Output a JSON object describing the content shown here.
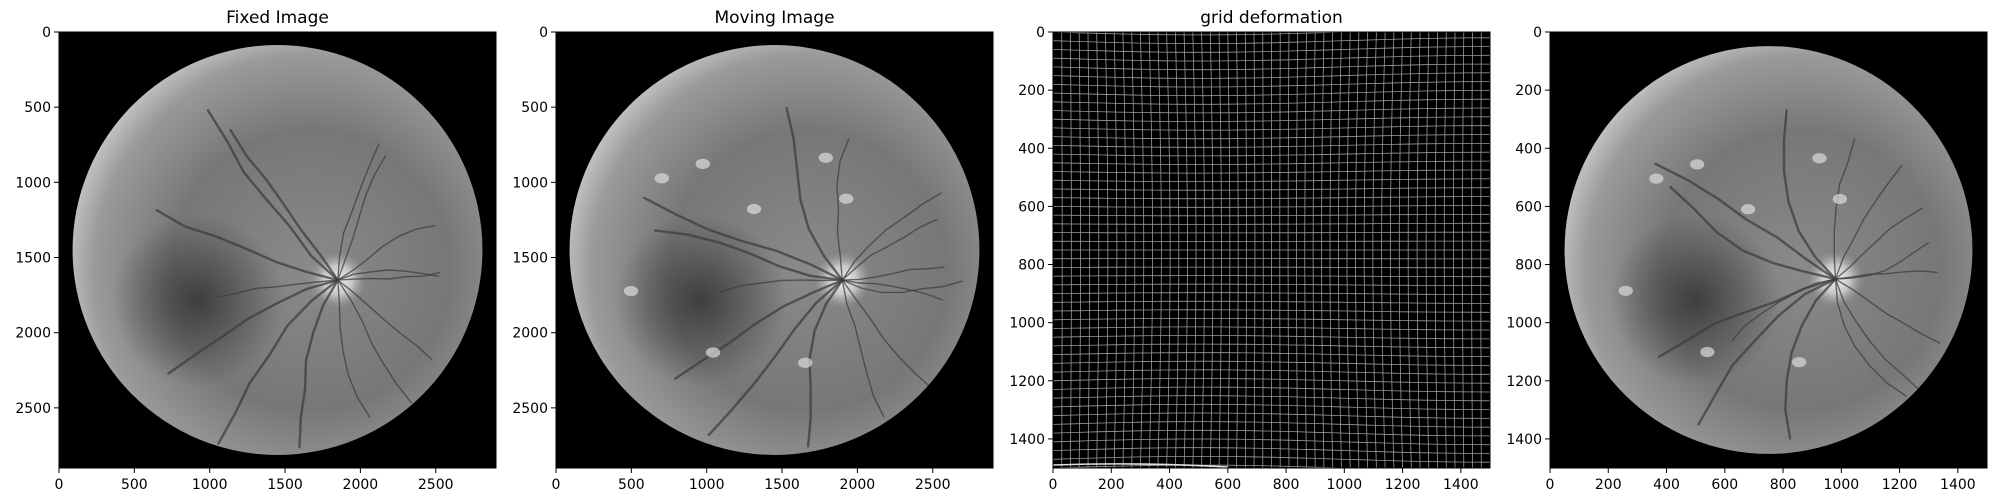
{
  "figure": {
    "panels": [
      {
        "id": "fixed",
        "title": "Fixed Image",
        "kind": "fundus",
        "extent": 2900,
        "xticks": [
          0,
          500,
          1000,
          1500,
          2000,
          2500
        ],
        "yticks": [
          0,
          500,
          1000,
          1500,
          2000,
          2500
        ],
        "image": {
          "background": "#000000",
          "disc_center": [
            1450,
            1450
          ],
          "disc_radius": 1360,
          "optic_disc": [
            1850,
            1650
          ],
          "fovea": [
            920,
            1780
          ],
          "tint": "#a6a6a6"
        }
      },
      {
        "id": "moving",
        "title": "Moving Image",
        "kind": "fundus",
        "extent": 2900,
        "xticks": [
          0,
          500,
          1000,
          1500,
          2000,
          2500
        ],
        "yticks": [
          0,
          500,
          1000,
          1500,
          2000,
          2500
        ],
        "image": {
          "background": "#000000",
          "disc_center": [
            1450,
            1450
          ],
          "disc_radius": 1360,
          "optic_disc": [
            1900,
            1650
          ],
          "fovea": [
            960,
            1780
          ],
          "tint": "#b0b0b0"
        }
      },
      {
        "id": "grid",
        "title": "grid deformation",
        "kind": "grid",
        "extent": 1500,
        "xticks": [
          0,
          200,
          400,
          600,
          800,
          1000,
          1200,
          1400
        ],
        "yticks": [
          0,
          200,
          400,
          600,
          800,
          1000,
          1200,
          1400
        ],
        "image": {
          "background": "#000000",
          "grid_spacing": 30,
          "line_color": "#9a9a9a"
        }
      },
      {
        "id": "warped",
        "title": "",
        "kind": "fundus",
        "extent": 1500,
        "xticks": [
          0,
          200,
          400,
          600,
          800,
          1000,
          1200,
          1400
        ],
        "yticks": [
          0,
          200,
          400,
          600,
          800,
          1000,
          1200,
          1400
        ],
        "image": {
          "background": "#000000",
          "disc_center": [
            750,
            750
          ],
          "disc_radius": 700,
          "optic_disc": [
            980,
            850
          ],
          "fovea": [
            500,
            920
          ],
          "tint": "#ababab"
        }
      }
    ]
  }
}
